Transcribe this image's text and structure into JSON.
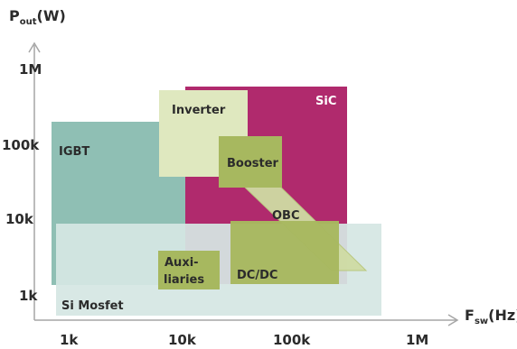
{
  "y_axis": {
    "title": "P",
    "subscript": "out",
    "unit": "(W)",
    "ticks": [
      "1M",
      "100k",
      "10k",
      "1k"
    ]
  },
  "x_axis": {
    "title": "F",
    "subscript": "sw",
    "unit": "(Hz)",
    "ticks": [
      "1k",
      "10k",
      "100k",
      "1M"
    ]
  },
  "regions": {
    "igbt": "IGBT",
    "si_mosfet": "Si Mosfet",
    "sic": "SiC",
    "inverter": "Inverter",
    "booster": "Booster",
    "obc": "OBC",
    "dcdc": "DC/DC",
    "auxiliaries_line1": "Auxi-",
    "auxiliaries_line2": "liaries"
  },
  "colors": {
    "axis": "#a6a6a6",
    "igbt": "#8fbfb4",
    "si_mosfet": "#d5e6e3",
    "sic": "#b02a6d",
    "inverter": "#dfe8bf",
    "green": "#a7b85f",
    "obc_band": "#cfdba3",
    "text": "#2b2b2b"
  }
}
